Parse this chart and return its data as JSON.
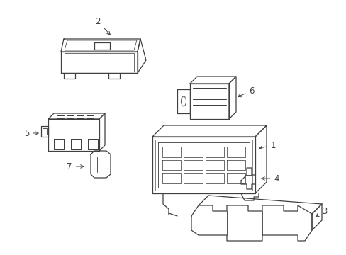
{
  "bg_color": "#ffffff",
  "line_color": "#404040",
  "lw": 0.9,
  "label_fontsize": 8.5
}
